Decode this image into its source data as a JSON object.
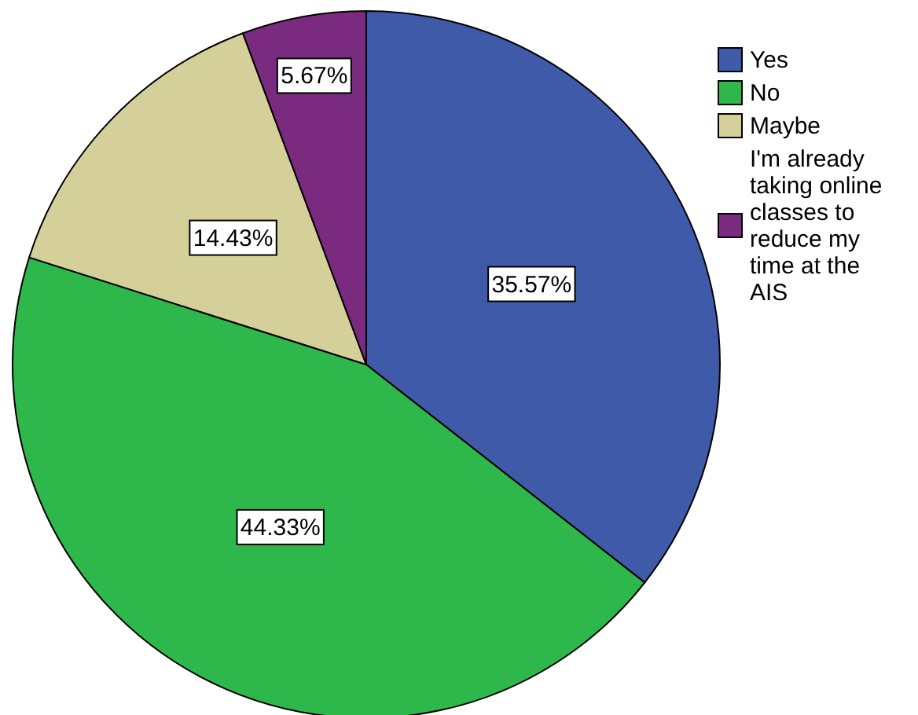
{
  "chart_data": {
    "type": "pie",
    "categories": [
      "Yes",
      "No",
      "Maybe",
      "I'm already taking online classes to reduce my time at the AIS"
    ],
    "values": [
      35.57,
      44.33,
      14.43,
      5.67
    ],
    "colors": [
      "#3f5aa9",
      "#2eb84b",
      "#d5cf9a",
      "#7b2b7f"
    ],
    "value_labels": [
      "35.57%",
      "44.33%",
      "14.43%",
      "5.67%"
    ],
    "legend": "top right"
  }
}
